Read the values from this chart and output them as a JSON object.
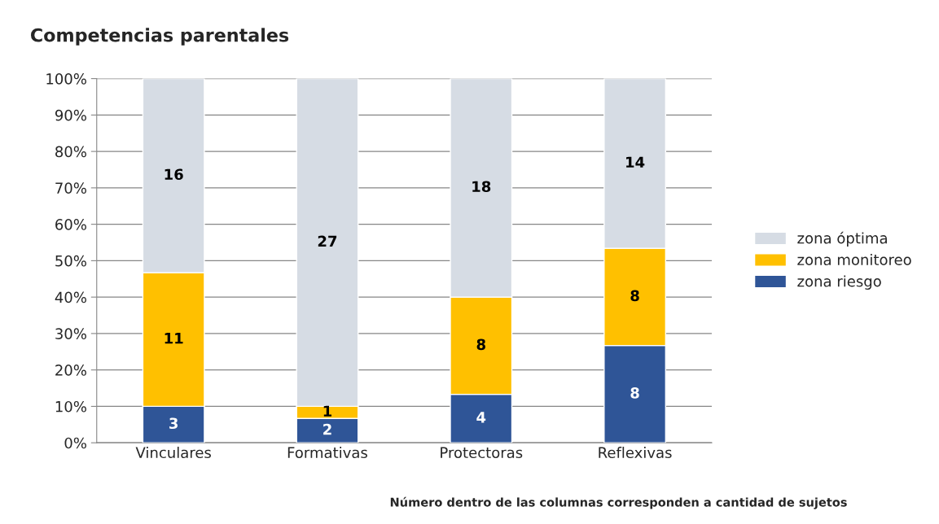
{
  "chart_data": {
    "type": "bar",
    "title": "Competencias parentales",
    "stacked": true,
    "categories": [
      "Vinculares",
      "Formativas",
      "Protectoras",
      "Reflexivas"
    ],
    "series": [
      {
        "name": "zona riesgo",
        "color": "#2f5597",
        "values": [
          10,
          6.7,
          13.3,
          26.7
        ]
      },
      {
        "name": "zona monitoreo",
        "color": "#ffc000",
        "values": [
          36.7,
          3.3,
          26.7,
          26.7
        ]
      },
      {
        "name": "zona óptima",
        "color": "#d6dce4",
        "values": [
          53.3,
          90,
          60,
          46.6
        ]
      }
    ],
    "ylim": [
      0,
      100
    ],
    "yticks": [
      {
        "value": 0,
        "label": "0%"
      },
      {
        "value": 10,
        "label": "10%"
      },
      {
        "value": 20,
        "label": "20%"
      },
      {
        "value": 30,
        "label": "30%"
      },
      {
        "value": 40,
        "label": "40%"
      },
      {
        "value": 50,
        "label": "50%"
      },
      {
        "value": 60,
        "label": "60%"
      },
      {
        "value": 70,
        "label": "70%"
      },
      {
        "value": 80,
        "label": "80%"
      },
      {
        "value": 90,
        "label": "90%"
      },
      {
        "value": 100,
        "label": "100%"
      }
    ],
    "grid": "y",
    "legend": "right",
    "annotations": [
      "3",
      "11",
      "16",
      "2",
      "1",
      "27",
      "4",
      "8",
      "18",
      "8",
      "8",
      "14",
      "Número dentro de las columnas corresponden a cantidad de sujetos"
    ]
  }
}
